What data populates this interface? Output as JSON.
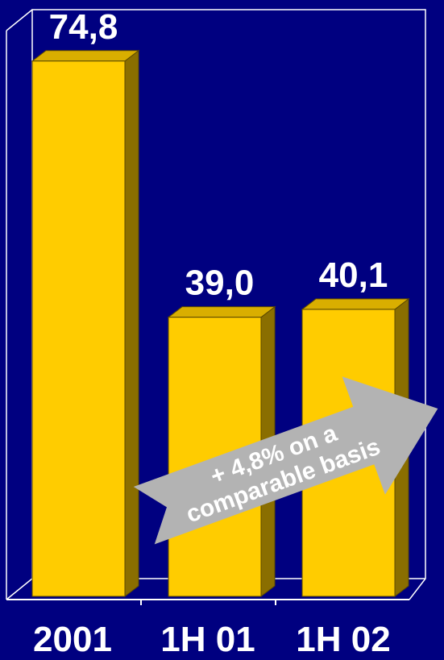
{
  "chart_data": {
    "type": "bar",
    "categories": [
      "2001",
      "1H 01",
      "1H 02"
    ],
    "values": [
      74.8,
      39.0,
      40.1
    ],
    "value_labels": [
      "74,8",
      "39,0",
      "40,1"
    ],
    "title": "",
    "xlabel": "",
    "ylabel": "",
    "grid": false,
    "legend": "none",
    "annotation": {
      "line1": "+ 4,8% on a",
      "line2": "comparable basis"
    }
  },
  "colors": {
    "background": "#000080",
    "bar_front": "#FFCC00",
    "bar_top": "#D9AE00",
    "bar_side": "#8A6E00",
    "arrow": "#B3B3B3",
    "axis": "#FFFFFF",
    "text": "#FFFFFF"
  }
}
